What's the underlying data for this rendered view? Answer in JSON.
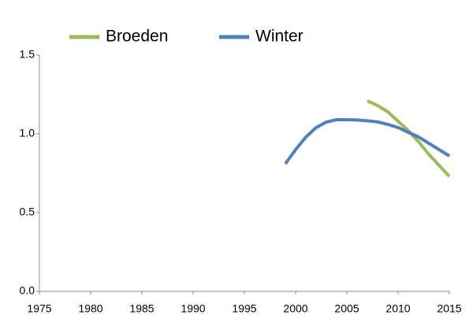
{
  "chart_data": {
    "type": "line",
    "series": [
      {
        "name": "Broeden",
        "color": "#9bbb59",
        "x": [
          2007,
          2008,
          2009,
          2010,
          2011,
          2012,
          2013,
          2014,
          2015
        ],
        "values": [
          1.21,
          1.18,
          1.14,
          1.08,
          1.02,
          0.95,
          0.87,
          0.8,
          0.73
        ]
      },
      {
        "name": "Winter",
        "color": "#4f81bd",
        "x": [
          1999,
          2000,
          2001,
          2002,
          2003,
          2004,
          2005,
          2006,
          2007,
          2008,
          2009,
          2010,
          2011,
          2012,
          2013,
          2014,
          2015
        ],
        "values": [
          0.81,
          0.9,
          0.98,
          1.04,
          1.075,
          1.09,
          1.09,
          1.088,
          1.083,
          1.076,
          1.06,
          1.04,
          1.01,
          0.98,
          0.94,
          0.9,
          0.86
        ]
      }
    ],
    "xlim": [
      1975,
      2015
    ],
    "xticks": [
      1975,
      1980,
      1985,
      1990,
      1995,
      2000,
      2005,
      2010,
      2015
    ],
    "ylim": [
      0,
      1.5
    ],
    "yticks": [
      {
        "value": 0,
        "label": "0.0"
      },
      0.5,
      {
        "value": 1,
        "label": "1.0"
      },
      1.5
    ],
    "grid": false
  }
}
